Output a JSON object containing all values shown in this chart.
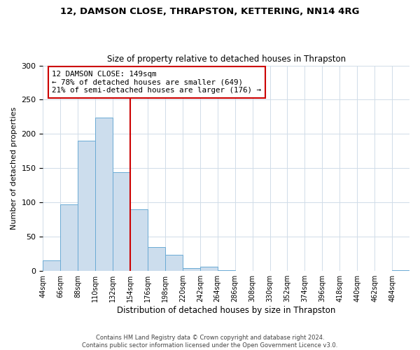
{
  "title": "12, DAMSON CLOSE, THRAPSTON, KETTERING, NN14 4RG",
  "subtitle": "Size of property relative to detached houses in Thrapston",
  "bar_values": [
    16,
    97,
    190,
    224,
    144,
    90,
    35,
    24,
    4,
    6,
    1,
    0,
    0,
    0,
    0,
    0,
    0,
    0,
    0,
    0,
    1
  ],
  "bin_edges": [
    44,
    66,
    88,
    110,
    132,
    154,
    176,
    198,
    220,
    242,
    264,
    286,
    308,
    330,
    352,
    374,
    396,
    418,
    440,
    462,
    484,
    506
  ],
  "x_tick_labels": [
    "44sqm",
    "66sqm",
    "88sqm",
    "110sqm",
    "132sqm",
    "154sqm",
    "176sqm",
    "198sqm",
    "220sqm",
    "242sqm",
    "264sqm",
    "286sqm",
    "308sqm",
    "330sqm",
    "352sqm",
    "374sqm",
    "396sqm",
    "418sqm",
    "440sqm",
    "462sqm",
    "484sqm"
  ],
  "bar_fill_color": "#ccdded",
  "bar_edge_color": "#6aaad4",
  "ylabel": "Number of detached properties",
  "xlabel": "Distribution of detached houses by size in Thrapston",
  "ylim": [
    0,
    300
  ],
  "yticks": [
    0,
    50,
    100,
    150,
    200,
    250,
    300
  ],
  "vline_x": 154,
  "vline_color": "#cc0000",
  "annotation_title": "12 DAMSON CLOSE: 149sqm",
  "annotation_line1": "← 78% of detached houses are smaller (649)",
  "annotation_line2": "21% of semi-detached houses are larger (176) →",
  "annotation_box_color": "#cc0000",
  "footer_line1": "Contains HM Land Registry data © Crown copyright and database right 2024.",
  "footer_line2": "Contains public sector information licensed under the Open Government Licence v3.0.",
  "background_color": "#ffffff",
  "grid_color": "#d0dce8"
}
